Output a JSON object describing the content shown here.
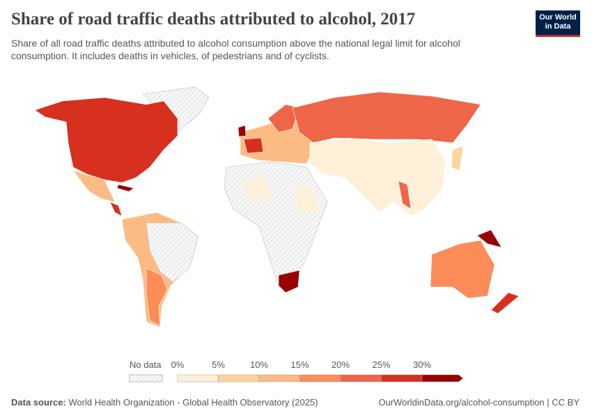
{
  "header": {
    "title": "Share of road traffic deaths attributed to alcohol, 2017",
    "subtitle_lines": [
      "Share of all road traffic deaths attributed to alcohol consumption above the national legal limit for alcohol",
      "consumption. It includes deaths in vehicles, of pedestrians and of cyclists."
    ]
  },
  "logo": {
    "lines": [
      "Our World",
      "in Data"
    ]
  },
  "legend": {
    "no_data": "No data",
    "ticks": [
      "0%",
      "5%",
      "10%",
      "15%",
      "20%",
      "25%",
      "30%"
    ],
    "colors": [
      "#fef0d9",
      "#fdd49e",
      "#fdbb84",
      "#fc8d59",
      "#ef6548",
      "#d7301f",
      "#990000"
    ]
  },
  "footer": {
    "source_label": "Data source:",
    "source": "World Health Organization - Global Health Observatory (2025)",
    "url": "OurWorldinData.org/alcohol-consumption | CC BY"
  }
}
